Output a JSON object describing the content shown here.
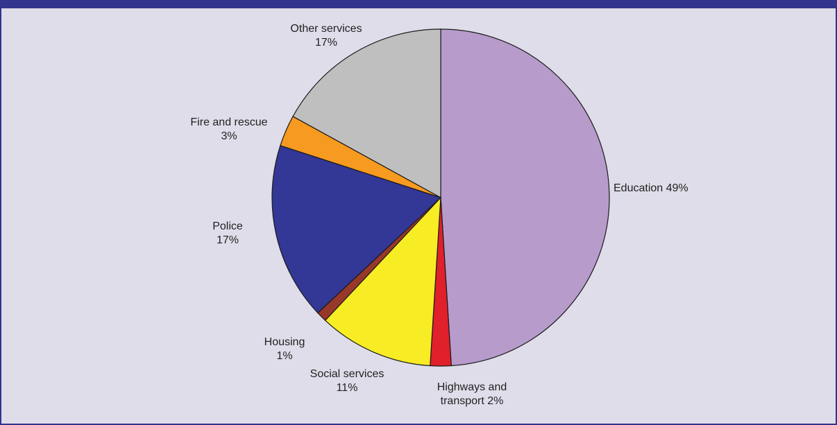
{
  "chart_data": {
    "type": "pie",
    "slices": [
      {
        "label": "Education",
        "value": 49,
        "display": "Education 49%",
        "color": "#b79bcb"
      },
      {
        "label": "Highways and transport",
        "value": 2,
        "display": "Highways and\ntransport 2%",
        "color": "#e0202a"
      },
      {
        "label": "Social services",
        "value": 11,
        "display": "Social services\n11%",
        "color": "#f8ec24"
      },
      {
        "label": "Housing",
        "value": 1,
        "display": "Housing\n1%",
        "color": "#98382a"
      },
      {
        "label": "Police",
        "value": 17,
        "display": "Police\n17%",
        "color": "#333795"
      },
      {
        "label": "Fire and rescue",
        "value": 3,
        "display": "Fire and rescue\n3%",
        "color": "#f79a20"
      },
      {
        "label": "Other services",
        "value": 17,
        "display": "Other services\n17%",
        "color": "#bfbfbf"
      }
    ]
  }
}
